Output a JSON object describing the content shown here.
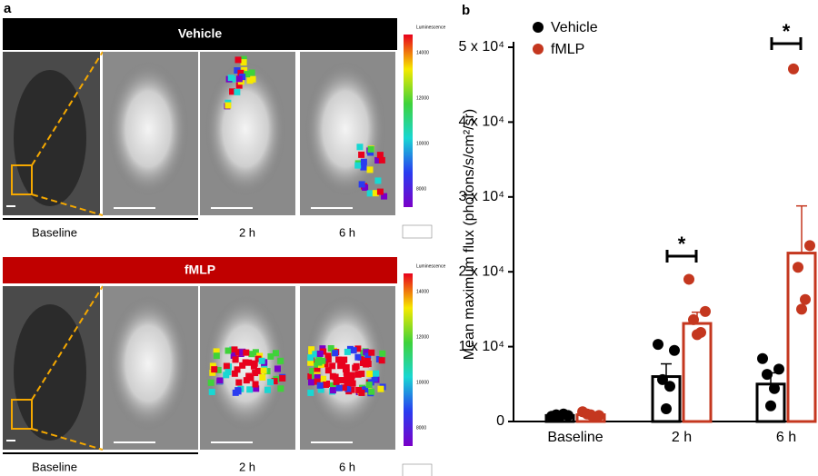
{
  "panel_a": {
    "label": "a",
    "rows": [
      {
        "title": "Vehicle",
        "labels": [
          "Baseline",
          "2 h",
          "6 h"
        ],
        "colorbar_title": "Luminescence",
        "colorbar_ticks": [
          "14000",
          "12000",
          "10000",
          "8000"
        ]
      },
      {
        "title": "fMLP",
        "labels": [
          "Baseline",
          "2 h",
          "6 h"
        ],
        "colorbar_title": "Luminescence",
        "colorbar_ticks": [
          "14000",
          "12000",
          "10000",
          "8000"
        ]
      }
    ]
  },
  "chart_data": {
    "type": "bar",
    "label": "b",
    "y_label": "Mean maximum flux (photons/s/cm²/sr)",
    "categories": [
      "Baseline",
      "2 h",
      "6 h"
    ],
    "ylim": [
      0,
      50000
    ],
    "yticks": [
      0,
      {
        "value": 10000,
        "label": "1 x 10⁴"
      },
      {
        "value": 20000,
        "label": "2 x 10⁴"
      },
      {
        "value": 30000,
        "label": "3 x 10⁴"
      },
      {
        "value": 40000,
        "label": "4 x 10⁴"
      },
      {
        "value": 50000,
        "label": "5 x 10⁴"
      }
    ],
    "series": [
      {
        "name": "Vehicle",
        "color": "#000000",
        "values": [
          800,
          6000,
          5000
        ],
        "errors": [
          150,
          1700,
          1500
        ],
        "points": [
          [
            700,
            800,
            900,
            1000,
            700
          ],
          [
            10300,
            9500,
            5600,
            4700,
            1700
          ],
          [
            8400,
            7000,
            6300,
            4400,
            2100
          ]
        ]
      },
      {
        "name": "fMLP",
        "color": "#c4371f",
        "values": [
          900,
          13100,
          22500
        ],
        "errors": [
          200,
          1500,
          6300
        ],
        "points": [
          [
            1300,
            800,
            1000,
            600,
            900
          ],
          [
            19000,
            14700,
            13600,
            11900,
            11600
          ],
          [
            47100,
            23500,
            20600,
            16300,
            15000
          ]
        ]
      }
    ],
    "annotations": [
      "*",
      "*"
    ]
  }
}
